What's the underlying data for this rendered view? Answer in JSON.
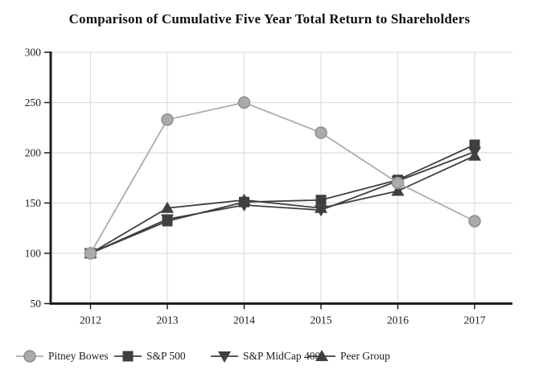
{
  "chart": {
    "title": "Comparison of Cumulative Five Year Total Return to Shareholders"
  },
  "chart_data": {
    "type": "line",
    "title": "Comparison of Cumulative Five Year Total Return to Shareholders",
    "xlabel": "",
    "ylabel": "",
    "categories": [
      "2012",
      "2013",
      "2014",
      "2015",
      "2016",
      "2017"
    ],
    "series": [
      {
        "name": "Pitney Bowes",
        "marker": "circle",
        "color": "#ABABAB",
        "marker_stroke": "#8F8F8F",
        "values": [
          100,
          233,
          250,
          220,
          170,
          132
        ]
      },
      {
        "name": "S&P 500",
        "marker": "square",
        "color": "#3F3F3F",
        "marker_stroke": "#3F3F3F",
        "values": [
          100,
          132,
          151,
          153,
          173,
          208
        ]
      },
      {
        "name": "S&P MidCap 400",
        "marker": "triangle-down",
        "color": "#3F3F3F",
        "marker_stroke": "#3F3F3F",
        "values": [
          100,
          134,
          148,
          143,
          172,
          201
        ]
      },
      {
        "name": "Peer Group",
        "marker": "triangle-up",
        "color": "#3F3F3F",
        "marker_stroke": "#3F3F3F",
        "values": [
          100,
          145,
          153,
          145,
          162,
          197
        ]
      }
    ],
    "ylim": [
      50,
      300
    ],
    "yticks": [
      50,
      100,
      150,
      200,
      250,
      300
    ],
    "layout": {
      "grid": true,
      "grid_color": "#DEDEDE",
      "axis_color": "#1F1F1F",
      "tick_label_color": "#1c1c1c",
      "legend_position": "bottom",
      "draw_order": [
        1,
        2,
        3,
        0
      ]
    }
  }
}
